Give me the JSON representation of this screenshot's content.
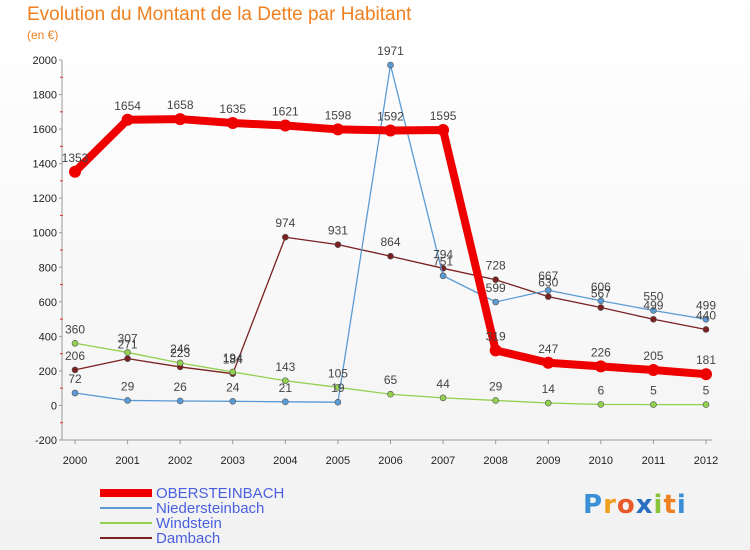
{
  "header": {
    "title": "Evolution du Montant de la Dette par Habitant",
    "subtitle": "(en €)"
  },
  "logo": {
    "letters": [
      "P",
      "r",
      "o",
      "x",
      "i",
      "t",
      "i"
    ],
    "colors": [
      "#3a8fd6",
      "#f0a020",
      "#e85a2a",
      "#2a6fc0",
      "#8ac43a",
      "#f08020",
      "#3a8fd6"
    ]
  },
  "chart_data": {
    "type": "line",
    "title": "Evolution du Montant de la Dette par Habitant",
    "subtitle": "(en €)",
    "xlabel": "",
    "ylabel": "",
    "x": [
      "2000",
      "2001",
      "2002",
      "2003",
      "2004",
      "2005",
      "2006",
      "2007",
      "2008",
      "2009",
      "2010",
      "2011",
      "2012"
    ],
    "ylim": [
      -200,
      2000
    ],
    "yticks": [
      "-200",
      "0",
      "200",
      "400",
      "600",
      "800",
      "1000",
      "1200",
      "1400",
      "1600",
      "1800",
      "2000"
    ],
    "grid": false,
    "legend": "bottom-left",
    "series": [
      {
        "name": "OBERSTEINBACH",
        "color": "#ee0000",
        "values": [
          1353,
          1654,
          1658,
          1635,
          1621,
          1598,
          1592,
          1595,
          319,
          247,
          226,
          205,
          181
        ]
      },
      {
        "name": "Niedersteinbach",
        "color": "#5b9bd5",
        "values": [
          72,
          29,
          26,
          24,
          21,
          19,
          1971,
          751,
          599,
          667,
          606,
          550,
          499
        ]
      },
      {
        "name": "Windstein",
        "color": "#92d050",
        "values": [
          360,
          307,
          246,
          194,
          143,
          105,
          65,
          44,
          29,
          14,
          6,
          5,
          5
        ]
      },
      {
        "name": "Dambach",
        "color": "#7b2020",
        "values": [
          206,
          271,
          223,
          184,
          974,
          931,
          864,
          794,
          728,
          630,
          567,
          499,
          440
        ]
      }
    ]
  }
}
